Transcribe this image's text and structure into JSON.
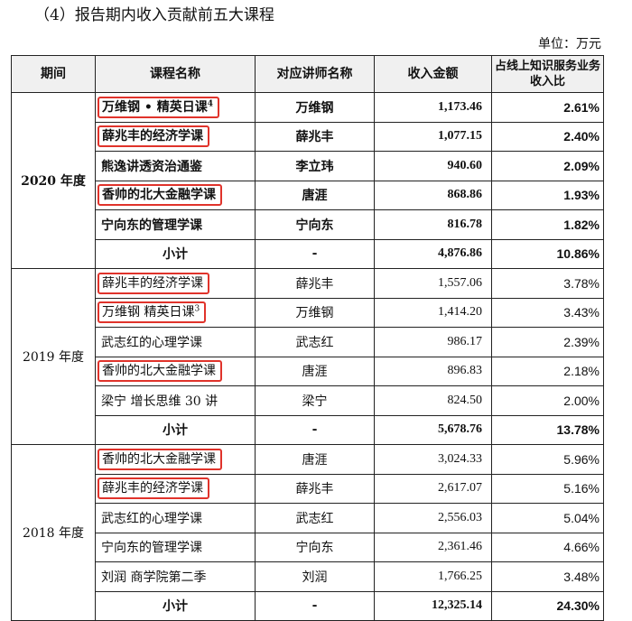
{
  "heading": "（4）报告期内收入贡献前五大课程",
  "unit": "单位：万元",
  "columns": [
    "期间",
    "课程名称",
    "对应讲师名称",
    "收入金额",
    "占线上知识服务业务收入比"
  ],
  "groups": [
    {
      "period": "2020 年度",
      "rows": [
        {
          "course": "万维钢 • 精英日课",
          "sup": "4",
          "teacher": "万维钢",
          "amount": "1,173.46",
          "ratio": "2.61%",
          "highlight": true
        },
        {
          "course": "薛兆丰的经济学课",
          "sup": "",
          "teacher": "薛兆丰",
          "amount": "1,077.15",
          "ratio": "2.40%",
          "highlight": true
        },
        {
          "course": "熊逸讲透资治通鉴",
          "sup": "",
          "teacher": "李立玮",
          "amount": "940.60",
          "ratio": "2.09%",
          "highlight": false
        },
        {
          "course": "香帅的北大金融学课",
          "sup": "",
          "teacher": "唐涯",
          "amount": "868.86",
          "ratio": "1.93%",
          "highlight": true
        },
        {
          "course": "宁向东的管理学课",
          "sup": "",
          "teacher": "宁向东",
          "amount": "816.78",
          "ratio": "1.82%",
          "highlight": false
        }
      ],
      "subtotal": {
        "label": "小计",
        "teacher": "-",
        "amount": "4,876.86",
        "ratio": "10.86%"
      }
    },
    {
      "period": "2019 年度",
      "rows": [
        {
          "course": "薛兆丰的经济学课",
          "sup": "",
          "teacher": "薛兆丰",
          "amount": "1,557.06",
          "ratio": "3.78%",
          "highlight": true
        },
        {
          "course": "万维钢 精英日课",
          "sup": "3",
          "teacher": "万维钢",
          "amount": "1,414.20",
          "ratio": "3.43%",
          "highlight": true
        },
        {
          "course": "武志红的心理学课",
          "sup": "",
          "teacher": "武志红",
          "amount": "986.17",
          "ratio": "2.39%",
          "highlight": false
        },
        {
          "course": "香帅的北大金融学课",
          "sup": "",
          "teacher": "唐涯",
          "amount": "896.83",
          "ratio": "2.18%",
          "highlight": true
        },
        {
          "course": "梁宁 增长思维 30 讲",
          "sup": "",
          "teacher": "梁宁",
          "amount": "824.50",
          "ratio": "2.00%",
          "highlight": false
        }
      ],
      "subtotal": {
        "label": "小计",
        "teacher": "-",
        "amount": "5,678.76",
        "ratio": "13.78%"
      }
    },
    {
      "period": "2018 年度",
      "rows": [
        {
          "course": "香帅的北大金融学课",
          "sup": "",
          "teacher": "唐涯",
          "amount": "3,024.33",
          "ratio": "5.96%",
          "highlight": true
        },
        {
          "course": "薛兆丰的经济学课",
          "sup": "",
          "teacher": "薛兆丰",
          "amount": "2,617.07",
          "ratio": "5.16%",
          "highlight": true
        },
        {
          "course": "武志红的心理学课",
          "sup": "",
          "teacher": "武志红",
          "amount": "2,556.03",
          "ratio": "5.04%",
          "highlight": false
        },
        {
          "course": "宁向东的管理学课",
          "sup": "",
          "teacher": "宁向东",
          "amount": "2,361.46",
          "ratio": "4.66%",
          "highlight": false
        },
        {
          "course": "刘润 商学院第二季",
          "sup": "",
          "teacher": "刘润",
          "amount": "1,766.25",
          "ratio": "3.48%",
          "highlight": false
        }
      ],
      "subtotal": {
        "label": "小计",
        "teacher": "-",
        "amount": "12,325.14",
        "ratio": "24.30%"
      }
    }
  ],
  "colors": {
    "highlight_border": "#e0332b",
    "header_bg": "#f0f0f0"
  }
}
